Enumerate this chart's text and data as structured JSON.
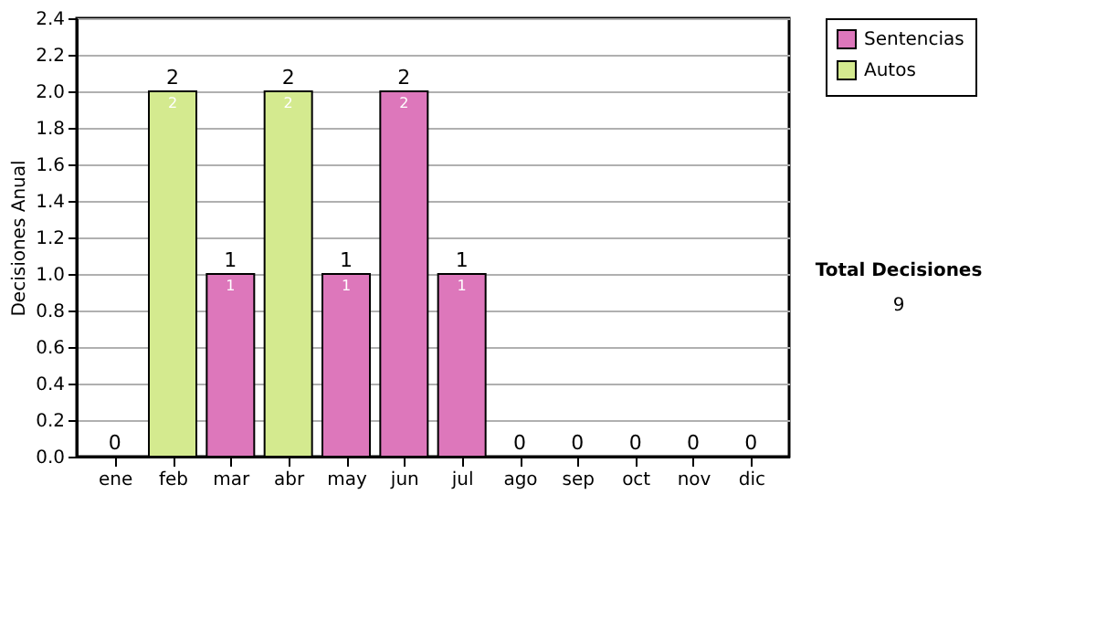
{
  "chart_data": {
    "type": "bar",
    "stacked": true,
    "ylabel": "Decisiones Anual",
    "categories": [
      "ene",
      "feb",
      "mar",
      "abr",
      "may",
      "jun",
      "jul",
      "ago",
      "sep",
      "oct",
      "nov",
      "dic"
    ],
    "series": [
      {
        "name": "Sentencias",
        "color": "#dd77bb",
        "values": [
          0,
          0,
          1,
          0,
          1,
          2,
          1,
          0,
          0,
          0,
          0,
          0
        ],
        "value_labels": [
          null,
          null,
          "1",
          null,
          "1",
          "2",
          "1",
          null,
          null,
          null,
          null,
          null
        ]
      },
      {
        "name": "Autos",
        "color": "#d4ea8f",
        "values": [
          0,
          2,
          0,
          2,
          0,
          0,
          0,
          0,
          0,
          0,
          0,
          0
        ],
        "value_labels": [
          null,
          "2",
          null,
          "2",
          null,
          null,
          null,
          null,
          null,
          null,
          null,
          null
        ]
      }
    ],
    "totals": [
      "0",
      "2",
      "1",
      "2",
      "1",
      "2",
      "1",
      "0",
      "0",
      "0",
      "0",
      "0"
    ],
    "ylim": [
      0,
      2.4
    ],
    "yticks": [
      {
        "value": 0,
        "label": "0.0"
      },
      {
        "value": 0.2,
        "label": "0.2"
      },
      {
        "value": 0.4,
        "label": "0.4"
      },
      {
        "value": 0.6,
        "label": "0.6"
      },
      {
        "value": 0.8,
        "label": "0.8"
      },
      {
        "value": 1,
        "label": "1.0"
      },
      {
        "value": 1.2,
        "label": "1.2"
      },
      {
        "value": 1.4,
        "label": "1.4"
      },
      {
        "value": 1.6,
        "label": "1.6"
      },
      {
        "value": 1.8,
        "label": "1.8"
      },
      {
        "value": 2,
        "label": "2.0"
      },
      {
        "value": 2.2,
        "label": "2.2"
      },
      {
        "value": 2.4,
        "label": "2.4"
      }
    ],
    "grid": "y",
    "legend": "right",
    "annotations": [
      "Total Decisiones",
      "9"
    ]
  }
}
